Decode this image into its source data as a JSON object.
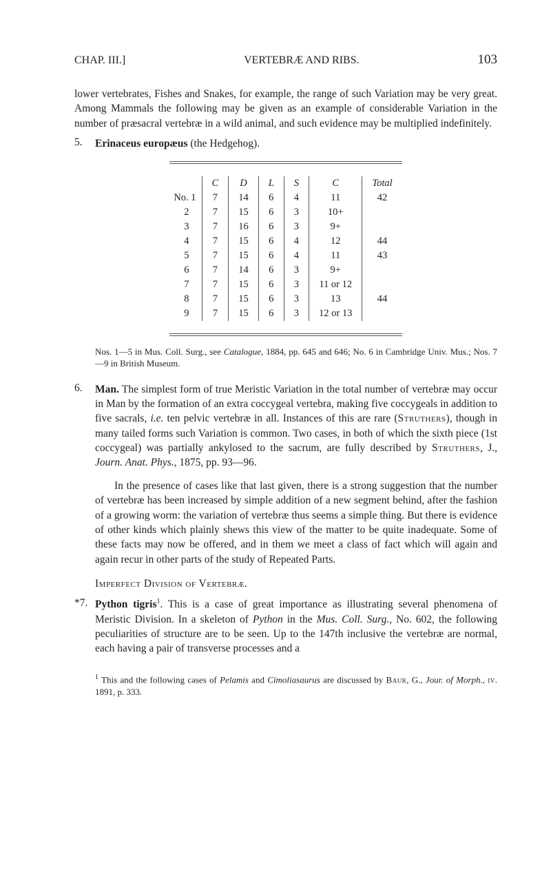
{
  "header": {
    "chap": "CHAP. III.]",
    "title": "VERTEBRÆ AND RIBS.",
    "page": "103"
  },
  "intro_para": "lower vertebrates, Fishes and Snakes, for example, the range of such Variation may be very great. Among Mammals the following may be given as an example of considerable Variation in the number of præsacral vertebræ in a wild animal, and such evidence may be multiplied indefinitely.",
  "item5": {
    "num": "5.",
    "bold": "Erinaceus europæus",
    "rest": " (the Hedgehog)."
  },
  "table": {
    "columns": [
      "",
      "C",
      "D",
      "L",
      "S",
      "C",
      "Total"
    ],
    "rows": [
      [
        "No. 1",
        "7",
        "14",
        "6",
        "4",
        "11",
        "42"
      ],
      [
        "2",
        "7",
        "15",
        "6",
        "3",
        "10+",
        ""
      ],
      [
        "3",
        "7",
        "16",
        "6",
        "3",
        "9+",
        ""
      ],
      [
        "4",
        "7",
        "15",
        "6",
        "4",
        "12",
        "44"
      ],
      [
        "5",
        "7",
        "15",
        "6",
        "4",
        "11",
        "43"
      ],
      [
        "6",
        "7",
        "14",
        "6",
        "3",
        "9+",
        ""
      ],
      [
        "7",
        "7",
        "15",
        "6",
        "3",
        "11 or 12",
        ""
      ],
      [
        "8",
        "7",
        "15",
        "6",
        "3",
        "13",
        "44"
      ],
      [
        "9",
        "7",
        "15",
        "6",
        "3",
        "12 or 13",
        ""
      ]
    ]
  },
  "table_note": "Nos. 1—5 in Mus. Coll. Surg., see Catalogue, 1884, pp. 645 and 646; No. 6 in Cambridge Univ. Mus.; Nos. 7—9 in British Museum.",
  "item6": {
    "num": "6.",
    "bold": "Man.",
    "rest": " The simplest form of true Meristic Variation in the total number of vertebræ may occur in Man by the formation of an extra coccygeal vertebra, making five coccygeals in addition to five sacrals, i.e. ten pelvic vertebræ in all. Instances of this are rare (Struthers), though in many tailed forms such Variation is common. Two cases, in both of which the sixth piece (1st coccygeal) was partially ankylosed to the sacrum, are fully described by Struthers, J., Journ. Anat. Phys., 1875, pp. 93—96."
  },
  "para6b": "In the presence of cases like that last given, there is a strong suggestion that the number of vertebræ has been increased by simple addition of a new segment behind, after the fashion of a growing worm: the variation of vertebræ thus seems a simple thing. But there is evidence of other kinds which plainly shews this view of the matter to be quite inadequate. Some of these facts may now be offered, and in them we meet a class of fact which will again and again recur in other parts of the study of Repeated Parts.",
  "section_head": "Imperfect Division of Vertebræ.",
  "item7": {
    "num": "*7.",
    "bold": "Python tigris",
    "sup": "1",
    "rest": ". This is a case of great importance as illustrating several phenomena of Meristic Division. In a skeleton of Python in the Mus. Coll. Surg., No. 602, the following peculiarities of structure are to be seen. Up to the 147th inclusive the vertebræ are normal, each having a pair of transverse processes and a"
  },
  "footnote": "1 This and the following cases of Pelamis and Cimoliasaurus are discussed by Baur, G., Jour. of Morph., IV. 1891, p. 333."
}
